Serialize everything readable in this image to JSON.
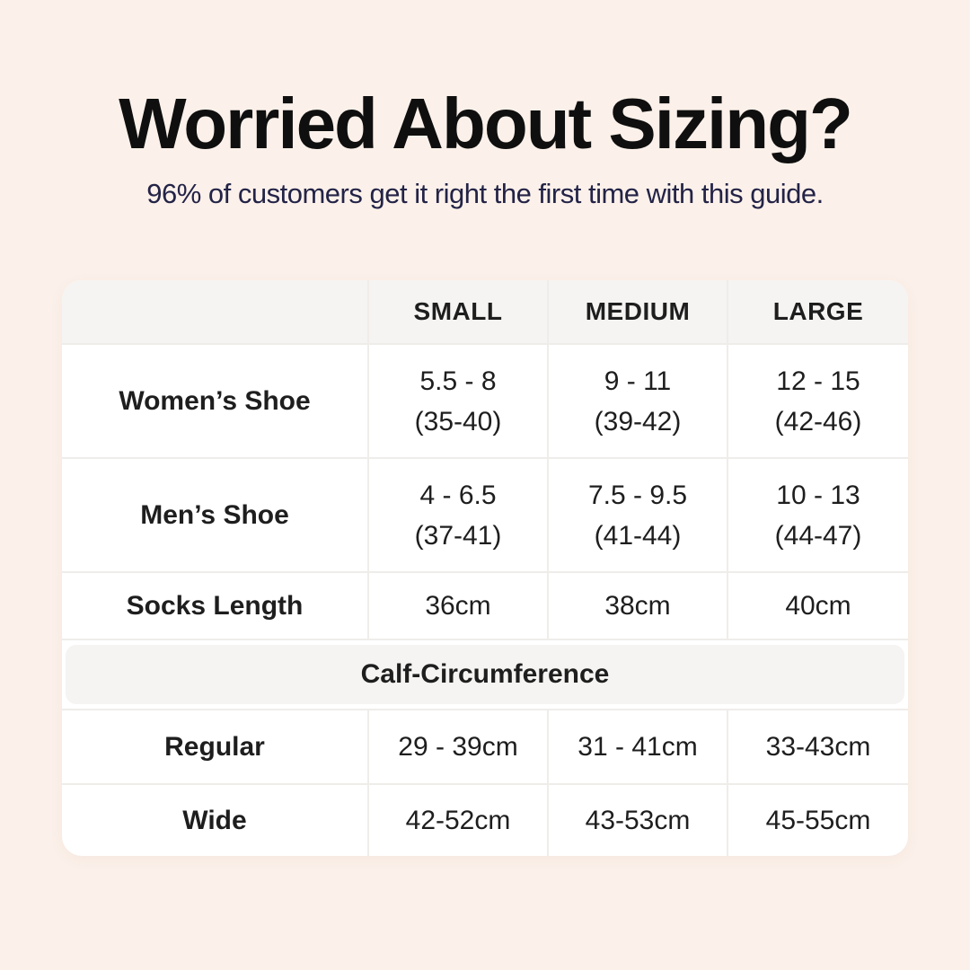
{
  "header": {
    "title": "Worried About Sizing?",
    "subtitle": "96% of customers get it right the first time with this guide."
  },
  "colors": {
    "background": "#FCF1EA",
    "card": "#FFFFFF",
    "band": "#F5F4F2",
    "title_text": "#0F0F0F",
    "subtitle_text": "#232347",
    "cell_text": "#1E1E1E",
    "divider": "#EFEDEA"
  },
  "size_table": {
    "column_headers": [
      "SMALL",
      "MEDIUM",
      "LARGE"
    ],
    "rows": [
      {
        "label": "Women’s Shoe",
        "small": {
          "line1": "5.5 - 8",
          "line2": "(35-40)"
        },
        "medium": {
          "line1": "9 - 11",
          "line2": "(39-42)"
        },
        "large": {
          "line1": "12 - 15",
          "line2": "(42-46)"
        }
      },
      {
        "label": "Men’s Shoe",
        "small": {
          "line1": "4 - 6.5",
          "line2": "(37-41)"
        },
        "medium": {
          "line1": "7.5 - 9.5",
          "line2": "(41-44)"
        },
        "large": {
          "line1": "10 - 13",
          "line2": "(44-47)"
        }
      },
      {
        "label": "Socks Length",
        "small": {
          "line1": "36cm"
        },
        "medium": {
          "line1": "38cm"
        },
        "large": {
          "line1": "40cm"
        }
      }
    ],
    "section_header": "Calf-Circumference",
    "calf_rows": [
      {
        "label": "Regular",
        "small": "29 - 39cm",
        "medium": "31 - 41cm",
        "large": "33-43cm"
      },
      {
        "label": "Wide",
        "small": "42-52cm",
        "medium": "43-53cm",
        "large": "45-55cm"
      }
    ]
  }
}
